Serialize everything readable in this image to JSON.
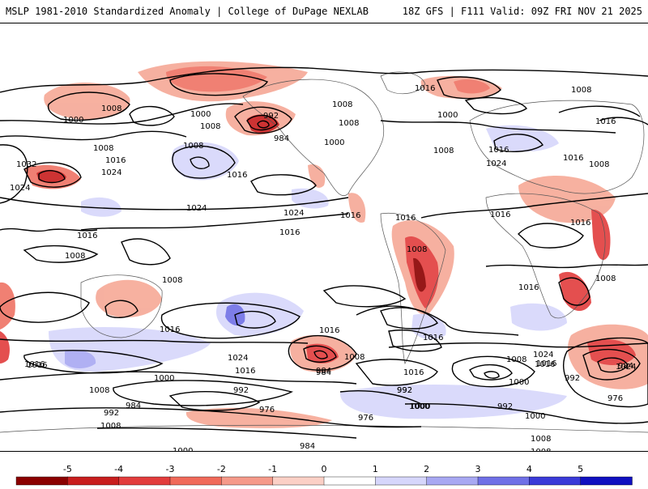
{
  "header": {
    "left": "MSLP 1981-2010 Standardized Anomaly | College of DuPage NEXLAB",
    "right": "18Z GFS | F111 Valid: 09Z FRI NOV 21 2025"
  },
  "colorbar": {
    "ticks": [
      "-5",
      "-4",
      "-3",
      "-2",
      "-1",
      "0",
      "1",
      "2",
      "3",
      "4",
      "5"
    ],
    "colors": [
      "#8b0000",
      "#c81e1e",
      "#e23c3c",
      "#f06a5a",
      "#f59a8a",
      "#fbd0c6",
      "#ffffff",
      "#d6d6fb",
      "#a8a8f2",
      "#7070e6",
      "#3a3ad8",
      "#1010c0"
    ]
  },
  "isobars": [
    {
      "label": "1008"
    },
    {
      "label": "1000"
    },
    {
      "label": "1008"
    },
    {
      "label": "1016"
    },
    {
      "label": "1032"
    },
    {
      "label": "1024"
    },
    {
      "label": "1024"
    },
    {
      "label": "1016"
    },
    {
      "label": "1008"
    },
    {
      "label": "1008"
    },
    {
      "label": "1000"
    },
    {
      "label": "1008"
    },
    {
      "label": "992"
    },
    {
      "label": "1008"
    },
    {
      "label": "984"
    },
    {
      "label": "1000"
    },
    {
      "label": "1008"
    },
    {
      "label": "1016"
    },
    {
      "label": "1024"
    },
    {
      "label": "1016"
    },
    {
      "label": "1024"
    },
    {
      "label": "1016"
    },
    {
      "label": "1016"
    },
    {
      "label": "1016"
    },
    {
      "label": "1008"
    },
    {
      "label": "1016"
    },
    {
      "label": "1008"
    },
    {
      "label": "1000"
    },
    {
      "label": "1016"
    },
    {
      "label": "1008"
    },
    {
      "label": "1016"
    },
    {
      "label": "1024"
    },
    {
      "label": "1016"
    },
    {
      "label": "1008"
    },
    {
      "label": "1016"
    },
    {
      "label": "1016"
    },
    {
      "label": "1016"
    },
    {
      "label": "1000"
    },
    {
      "label": "1008"
    },
    {
      "label": "992"
    },
    {
      "label": "984"
    },
    {
      "label": "976"
    },
    {
      "label": "984"
    },
    {
      "label": "992"
    },
    {
      "label": "1000"
    },
    {
      "label": "1008"
    },
    {
      "label": "1016"
    },
    {
      "label": "1016"
    },
    {
      "label": "984"
    },
    {
      "label": "992"
    },
    {
      "label": "1000"
    },
    {
      "label": "976"
    },
    {
      "label": "1008"
    },
    {
      "label": "1008"
    },
    {
      "label": "1016"
    },
    {
      "label": "1024"
    },
    {
      "label": "992"
    },
    {
      "label": "1000"
    },
    {
      "label": "1008"
    },
    {
      "label": "1016"
    },
    {
      "label": "1024"
    },
    {
      "label": "1008"
    },
    {
      "label": "1024"
    },
    {
      "label": "992"
    },
    {
      "label": "984"
    },
    {
      "label": "976"
    },
    {
      "label": "1000"
    },
    {
      "label": "1008"
    },
    {
      "label": "984"
    },
    {
      "label": "992"
    },
    {
      "label": "1000"
    },
    {
      "label": "1016"
    },
    {
      "label": "1016"
    },
    {
      "label": "1008"
    },
    {
      "label": "1016"
    },
    {
      "label": "1016"
    }
  ]
}
